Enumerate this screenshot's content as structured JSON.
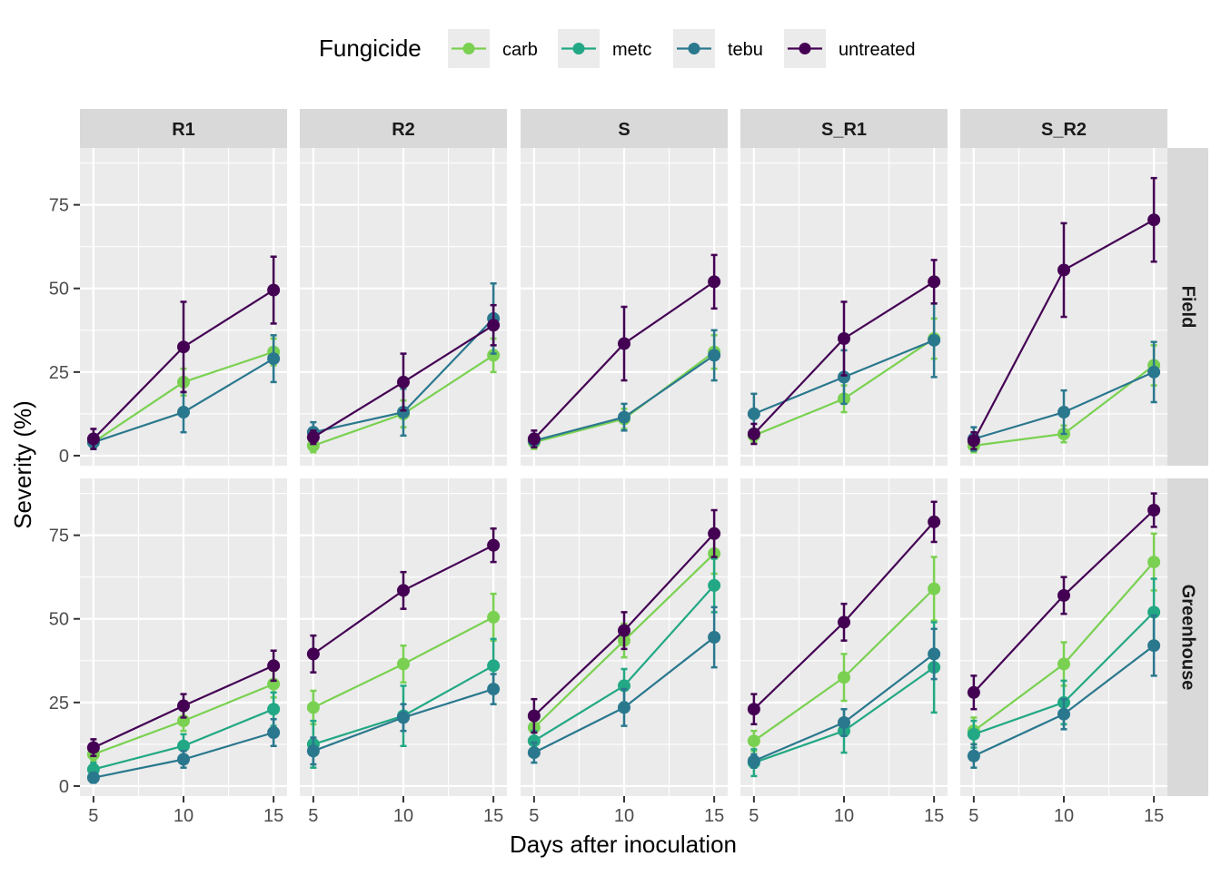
{
  "chart_data": {
    "type": "line",
    "x_label": "Days after inoculation",
    "y_label": "Severity (%)",
    "x_ticks": [
      5,
      10,
      15
    ],
    "y_ticks": [
      0,
      25,
      50,
      75
    ],
    "y_range": [
      -3,
      92
    ],
    "x_range": [
      4.25,
      15.75
    ],
    "grid": true,
    "legend": {
      "title": "Fungicide",
      "position": "top",
      "entries": [
        {
          "name": "carb",
          "color": "#7ad151"
        },
        {
          "name": "metc",
          "color": "#22a884"
        },
        {
          "name": "tebu",
          "color": "#2a788e"
        },
        {
          "name": "untreated",
          "color": "#440154"
        }
      ]
    },
    "columns": [
      "R1",
      "R2",
      "S",
      "S_R1",
      "S_R2"
    ],
    "rows": [
      "Field",
      "Greenhouse"
    ],
    "x": [
      5,
      10,
      15
    ],
    "panels": [
      {
        "column": "R1",
        "row": "Field",
        "series": [
          {
            "name": "carb",
            "values": [
              4,
              22,
              31
            ],
            "err": [
              2,
              4,
              4
            ]
          },
          {
            "name": "tebu",
            "values": [
              4,
              13,
              29
            ],
            "err": [
              2,
              6,
              7
            ]
          },
          {
            "name": "untreated",
            "values": [
              5,
              32.5,
              49.5
            ],
            "err": [
              3,
              13.5,
              10
            ]
          }
        ]
      },
      {
        "column": "R2",
        "row": "Field",
        "series": [
          {
            "name": "carb",
            "values": [
              3,
              12.5,
              30
            ],
            "err": [
              2,
              4,
              5
            ]
          },
          {
            "name": "tebu",
            "values": [
              7,
              13,
              41
            ],
            "err": [
              3,
              7,
              10.5
            ]
          },
          {
            "name": "untreated",
            "values": [
              5.5,
              22,
              39
            ],
            "err": [
              2,
              8.5,
              6
            ]
          }
        ]
      },
      {
        "column": "S",
        "row": "Field",
        "series": [
          {
            "name": "carb",
            "values": [
              4,
              11,
              31
            ],
            "err": [
              2,
              3,
              5
            ]
          },
          {
            "name": "tebu",
            "values": [
              4.5,
              11.5,
              30
            ],
            "err": [
              2,
              4,
              7.5
            ]
          },
          {
            "name": "untreated",
            "values": [
              5,
              33.5,
              52
            ],
            "err": [
              2.5,
              11,
              8
            ]
          }
        ]
      },
      {
        "column": "S_R1",
        "row": "Field",
        "series": [
          {
            "name": "carb",
            "values": [
              6,
              17,
              35
            ],
            "err": [
              2,
              4,
              6
            ]
          },
          {
            "name": "tebu",
            "values": [
              12.5,
              23.5,
              34.5
            ],
            "err": [
              6,
              8,
              11
            ]
          },
          {
            "name": "untreated",
            "values": [
              6.5,
              35,
              52
            ],
            "err": [
              3,
              11,
              6.5
            ]
          }
        ]
      },
      {
        "column": "S_R2",
        "row": "Field",
        "series": [
          {
            "name": "carb",
            "values": [
              3,
              6.5,
              27
            ],
            "err": [
              2,
              2.5,
              6
            ]
          },
          {
            "name": "tebu",
            "values": [
              5,
              13,
              25
            ],
            "err": [
              3.5,
              6.5,
              9
            ]
          },
          {
            "name": "untreated",
            "values": [
              4.5,
              55.5,
              70.5
            ],
            "err": [
              2.5,
              14,
              12.5
            ]
          }
        ]
      },
      {
        "column": "R1",
        "row": "Greenhouse",
        "series": [
          {
            "name": "carb",
            "values": [
              9.5,
              19.5,
              30.5
            ],
            "err": [
              2,
              3,
              4
            ]
          },
          {
            "name": "metc",
            "values": [
              5,
              12,
              23
            ],
            "err": [
              2,
              3.5,
              5
            ]
          },
          {
            "name": "tebu",
            "values": [
              2.5,
              8,
              16
            ],
            "err": [
              1.5,
              2.5,
              4
            ]
          },
          {
            "name": "untreated",
            "values": [
              11.5,
              24,
              36
            ],
            "err": [
              2.5,
              3.5,
              4.5
            ]
          }
        ]
      },
      {
        "column": "R2",
        "row": "Greenhouse",
        "series": [
          {
            "name": "carb",
            "values": [
              23.5,
              36.5,
              50.5
            ],
            "err": [
              5,
              5.5,
              7
            ]
          },
          {
            "name": "metc",
            "values": [
              12.5,
              21,
              36
            ],
            "err": [
              7,
              9,
              8
            ]
          },
          {
            "name": "tebu",
            "values": [
              10.5,
              20.5,
              29
            ],
            "err": [
              4,
              4,
              4.5
            ]
          },
          {
            "name": "untreated",
            "values": [
              39.5,
              58.5,
              72
            ],
            "err": [
              5.5,
              5.5,
              5
            ]
          }
        ]
      },
      {
        "column": "S",
        "row": "Greenhouse",
        "series": [
          {
            "name": "carb",
            "values": [
              17.5,
              43.5,
              69.5
            ],
            "err": [
              3.5,
              5,
              6
            ]
          },
          {
            "name": "metc",
            "values": [
              13.5,
              30,
              60
            ],
            "err": [
              3,
              5,
              8
            ]
          },
          {
            "name": "tebu",
            "values": [
              10,
              23.5,
              44.5
            ],
            "err": [
              3,
              5.5,
              9
            ]
          },
          {
            "name": "untreated",
            "values": [
              21,
              46.5,
              75.5
            ],
            "err": [
              5,
              5.5,
              7
            ]
          }
        ]
      },
      {
        "column": "S_R1",
        "row": "Greenhouse",
        "series": [
          {
            "name": "carb",
            "values": [
              13.5,
              32.5,
              59
            ],
            "err": [
              3,
              7,
              9.5
            ]
          },
          {
            "name": "metc",
            "values": [
              7,
              16.5,
              35.5
            ],
            "err": [
              4,
              6.5,
              13.5
            ]
          },
          {
            "name": "tebu",
            "values": [
              7.5,
              19,
              39.5
            ],
            "err": [
              2,
              4,
              7.5
            ]
          },
          {
            "name": "untreated",
            "values": [
              23,
              49,
              79
            ],
            "err": [
              4.5,
              5.5,
              6
            ]
          }
        ]
      },
      {
        "column": "S_R2",
        "row": "Greenhouse",
        "series": [
          {
            "name": "carb",
            "values": [
              16.5,
              36.5,
              67
            ],
            "err": [
              4,
              6.5,
              8.5
            ]
          },
          {
            "name": "metc",
            "values": [
              15.5,
              25,
              52
            ],
            "err": [
              4,
              6.5,
              10
            ]
          },
          {
            "name": "tebu",
            "values": [
              9,
              21.5,
              42
            ],
            "err": [
              3.5,
              4.5,
              9
            ]
          },
          {
            "name": "untreated",
            "values": [
              28,
              57,
              82.5
            ],
            "err": [
              5,
              5.5,
              5
            ]
          }
        ]
      }
    ]
  }
}
